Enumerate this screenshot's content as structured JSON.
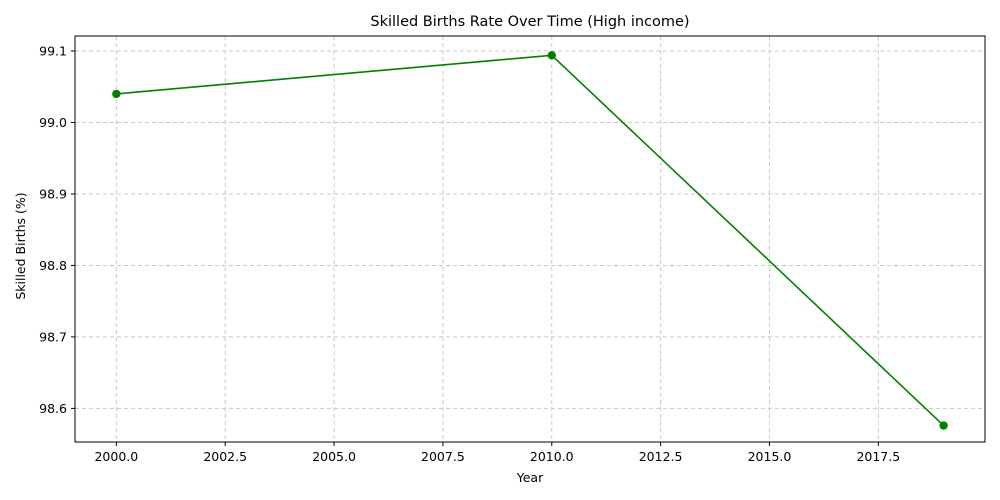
{
  "chart_data": {
    "type": "line",
    "title": "Skilled Births Rate Over Time (High income)",
    "xlabel": "Year",
    "ylabel": "Skilled Births (%)",
    "xlim": [
      1999.05,
      2019.95
    ],
    "ylim": [
      98.553,
      99.121
    ],
    "x_ticks": [
      2000.0,
      2002.5,
      2005.0,
      2007.5,
      2010.0,
      2012.5,
      2015.0,
      2017.5
    ],
    "x_tick_labels": [
      "2000.0",
      "2002.5",
      "2005.0",
      "2007.5",
      "2010.0",
      "2012.5",
      "2015.0",
      "2017.5"
    ],
    "y_ticks": [
      98.6,
      98.7,
      98.8,
      98.9,
      99.0,
      99.1
    ],
    "y_tick_labels": [
      "98.6",
      "98.7",
      "98.8",
      "98.9",
      "99.0",
      "99.1"
    ],
    "grid": true,
    "legend": "none",
    "series": [
      {
        "color": "#008000",
        "marker": "circle",
        "x": [
          2000,
          2010,
          2019
        ],
        "y": [
          99.04,
          99.094,
          98.576
        ]
      }
    ]
  }
}
